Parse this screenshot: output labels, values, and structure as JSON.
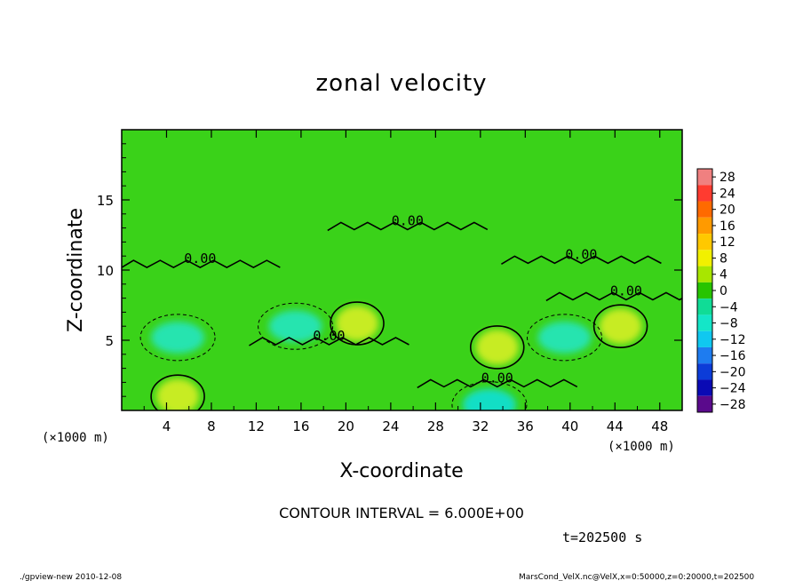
{
  "chart_data": {
    "type": "heatmap",
    "title": "zonal velocity",
    "xlabel": "X-coordinate",
    "ylabel": "Z-coordinate",
    "x_unit_label": "(×1000 m)",
    "y_unit_label": "(×1000 m)",
    "xlim": [
      0,
      50
    ],
    "ylim": [
      0,
      20
    ],
    "x_ticks": [
      4,
      8,
      12,
      16,
      20,
      24,
      28,
      32,
      36,
      40,
      44,
      48
    ],
    "y_ticks": [
      5,
      10,
      15
    ],
    "colorbar": {
      "levels": [
        28,
        24,
        20,
        16,
        12,
        8,
        4,
        0,
        -4,
        -8,
        -12,
        -16,
        -20,
        -24,
        -28
      ],
      "level_labels": [
        "28",
        "24",
        "20",
        "16",
        "12",
        "8",
        "4",
        "0",
        "−4",
        "−8",
        "−12",
        "−16",
        "−20",
        "−24",
        "−28"
      ],
      "colors": [
        "#f08080",
        "#ff3b30",
        "#ff6a00",
        "#ff9a00",
        "#ffc800",
        "#f2f000",
        "#a8e600",
        "#27c400",
        "#10dc96",
        "#14e6c8",
        "#10c8f0",
        "#1e7cf0",
        "#0c3cd8",
        "#0a0ab4",
        "#5a0a8c"
      ]
    },
    "contour_interval_text": "CONTOUR INTERVAL = 6.000E+00",
    "contour_labels": [
      {
        "text": "0.00",
        "x": 25.5,
        "z": 13.2
      },
      {
        "text": "0.00",
        "x": 7.0,
        "z": 10.5
      },
      {
        "text": "0.00",
        "x": 41.0,
        "z": 10.8
      },
      {
        "text": "0.00",
        "x": 45.0,
        "z": 8.2
      },
      {
        "text": "0.00",
        "x": 18.5,
        "z": 5.0
      },
      {
        "text": "0.00",
        "x": 33.5,
        "z": 2.0
      }
    ],
    "features": [
      {
        "kind": "negative",
        "x": 5.0,
        "z": 5.2,
        "value": -6
      },
      {
        "kind": "positive",
        "x": 21.0,
        "z": 6.2,
        "value": 6
      },
      {
        "kind": "positive",
        "x": 44.5,
        "z": 6.0,
        "value": 6
      },
      {
        "kind": "negative",
        "x": 39.5,
        "z": 5.2,
        "value": -6
      },
      {
        "kind": "positive",
        "x": 33.5,
        "z": 4.5,
        "value": 6
      },
      {
        "kind": "negative",
        "x": 32.8,
        "z": 0.4,
        "value": -8
      },
      {
        "kind": "positive",
        "x": 5.0,
        "z": 1.0,
        "value": 6
      },
      {
        "kind": "negative",
        "x": 15.5,
        "z": 6.0,
        "value": -6
      }
    ],
    "time_label": "t=202500 s",
    "footer_left": "./gpview-new  2010-12-08",
    "footer_right": "MarsCond_VelX.nc@VelX,x=0:50000,z=0:20000,t=202500"
  }
}
